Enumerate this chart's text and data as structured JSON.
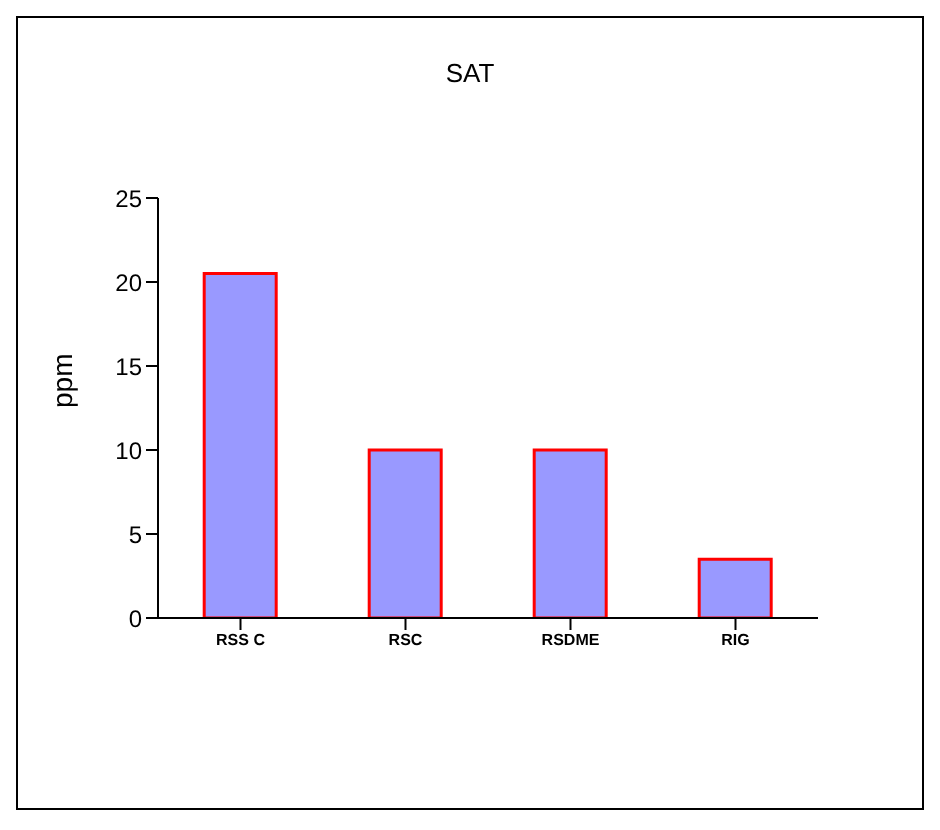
{
  "chart_data": {
    "type": "bar",
    "title": "SAT",
    "ylabel": "ppm",
    "categories": [
      "RSS C",
      "RSC",
      "RSDME",
      "RIG"
    ],
    "values": [
      20.5,
      10,
      10,
      3.5
    ],
    "color": "#9999ff",
    "ylim": [
      0,
      25
    ],
    "yticks": [
      0,
      5,
      10,
      15,
      20,
      25
    ],
    "grid": false,
    "legend": false
  }
}
